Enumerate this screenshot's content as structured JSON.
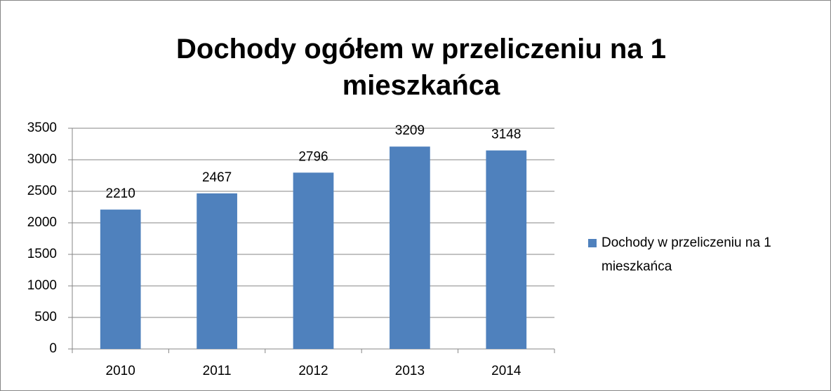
{
  "chart_data": {
    "type": "bar",
    "title": "Dochody ogółem w przeliczeniu na 1 mieszkańca",
    "categories": [
      "2010",
      "2011",
      "2012",
      "2013",
      "2014"
    ],
    "series": [
      {
        "name": "Dochody w przeliczeniu na 1 mieszkańca",
        "color": "#4f81bd",
        "values": [
          2210,
          2467,
          2796,
          3209,
          3148
        ]
      }
    ],
    "ylim": [
      0,
      3500
    ],
    "yticks": [
      0,
      500,
      1000,
      1500,
      2000,
      2500,
      3000,
      3500
    ],
    "grid": true,
    "legend": "right"
  }
}
